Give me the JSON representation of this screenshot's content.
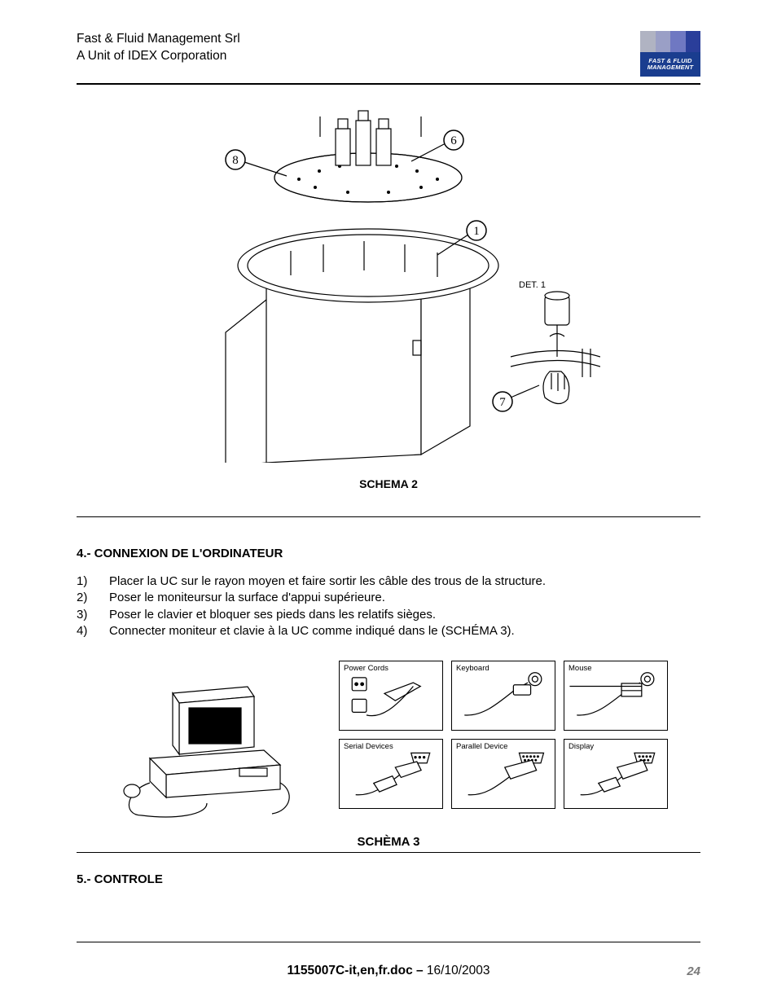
{
  "header": {
    "line1": "Fast & Fluid Management Srl",
    "line2": "A Unit of IDEX Corporation",
    "logo": {
      "top_colors": [
        "#b0b3c2",
        "#9a9fc6",
        "#6f78c2",
        "#2a3e9a"
      ],
      "bottom_color": "#1a3d8f",
      "text1": "FAST & FLUID",
      "text2": "MANAGEMENT"
    }
  },
  "schema2": {
    "caption": "SCHEMA 2",
    "det_label": "DET. 1",
    "callouts": {
      "c1": "1",
      "c6": "6",
      "c7": "7",
      "c8": "8"
    }
  },
  "section4": {
    "title": "4.- CONNEXION DE L'ORDINATEUR",
    "steps": [
      {
        "n": "1)",
        "t": "Placer la UC sur le rayon moyen et faire sortir les câble des trous de la structure."
      },
      {
        "n": "2)",
        "t": "Poser le moniteursur la surface d'appui supérieure."
      },
      {
        "n": "3)",
        "t": "Poser le clavier et bloquer ses pieds dans les relatifs sièges."
      },
      {
        "n": "4)",
        "t": "Connecter moniteur et clavie à la UC comme indiqué dans le (SCHÉMA 3)."
      }
    ]
  },
  "schema3": {
    "caption": "SCHÈMA 3",
    "ports": [
      "Power Cords",
      "Keyboard",
      "Mouse",
      "Serial Devices",
      "Parallel Device",
      "Display"
    ]
  },
  "section5": {
    "title": "5.- CONTROLE"
  },
  "footer": {
    "filename": "1155007C-it,en,fr.doc –",
    "date": " 16/10/2003",
    "page": "24"
  }
}
